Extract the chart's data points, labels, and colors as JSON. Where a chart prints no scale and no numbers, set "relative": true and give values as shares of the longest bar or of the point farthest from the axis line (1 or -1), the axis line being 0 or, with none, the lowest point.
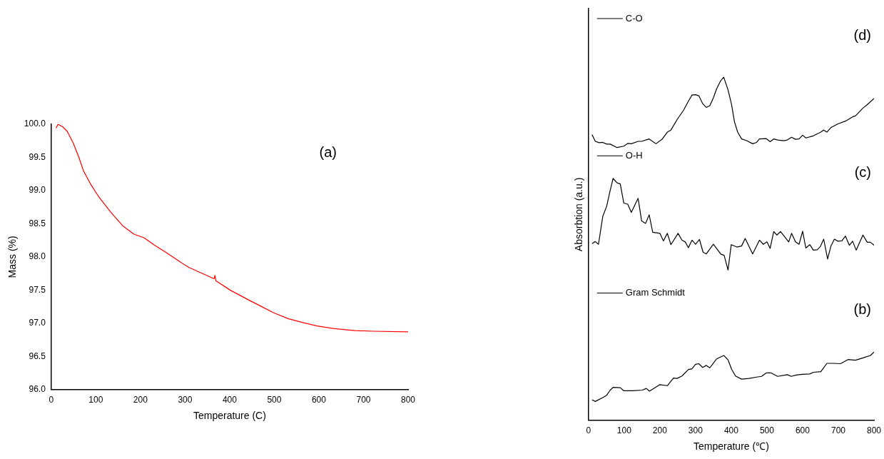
{
  "chart_data": [
    {
      "type": "line",
      "xlabel": "Temperature (C)",
      "ylabel": "Mass (%)",
      "color": "#ff0000",
      "annotations": [
        "(a)"
      ],
      "x": [
        11,
        15,
        26,
        36,
        49,
        62,
        72,
        88,
        107,
        134,
        160,
        186,
        208,
        231,
        257,
        290,
        309,
        342,
        365,
        367,
        369,
        401,
        440,
        472,
        498,
        531,
        564,
        596,
        635,
        681,
        720,
        800
      ],
      "values": [
        99.94,
        100.0,
        99.96,
        99.89,
        99.72,
        99.5,
        99.3,
        99.1,
        98.9,
        98.67,
        98.47,
        98.34,
        98.29,
        98.18,
        98.07,
        97.92,
        97.84,
        97.74,
        97.67,
        97.72,
        97.64,
        97.5,
        97.36,
        97.25,
        97.16,
        97.07,
        97.01,
        96.96,
        96.92,
        96.89,
        96.88,
        96.87
      ],
      "xlim": [
        0,
        800
      ],
      "xticks": [
        0,
        100,
        200,
        300,
        400,
        500,
        600,
        700,
        800
      ],
      "ylim": [
        96,
        100
      ],
      "yticks": [
        {
          "value": 96,
          "label": "96.0"
        },
        {
          "value": 96.5,
          "label": "96.5"
        },
        {
          "value": 97,
          "label": "97.0"
        },
        {
          "value": 97.5,
          "label": "97.5"
        },
        {
          "value": 98,
          "label": "98.0"
        },
        {
          "value": 98.5,
          "label": "98.5"
        },
        {
          "value": 99,
          "label": "99.0"
        },
        {
          "value": 99.5,
          "label": "99.5"
        },
        {
          "value": 100,
          "label": "100.0"
        }
      ]
    },
    {
      "type": "line",
      "xlabel": "Temperature (℃)",
      "ylabel": "Absorbtion (a.u.)",
      "relative": true,
      "tick_labels": "x",
      "legend": "top left",
      "annotations": [
        "(d)",
        "(c)",
        "(b)"
      ],
      "xlim": [
        0,
        800
      ],
      "xticks": [
        0,
        100,
        200,
        300,
        400,
        500,
        600,
        700,
        800
      ],
      "series": [
        {
          "name": "C-O",
          "color": "#000000",
          "x": [
            10,
            19,
            30,
            40,
            51,
            61,
            80,
            99,
            110,
            120,
            139,
            149,
            170,
            189,
            207,
            221,
            231,
            248,
            266,
            280,
            290,
            300,
            309,
            320,
            330,
            340,
            350,
            359,
            370,
            379,
            391,
            401,
            409,
            418,
            429,
            443,
            460,
            471,
            479,
            498,
            509,
            519,
            530,
            547,
            557,
            569,
            580,
            590,
            600,
            609,
            630,
            651,
            659,
            668,
            679,
            699,
            720,
            741,
            748,
            769,
            779,
            800
          ],
          "values": [
            0.833,
            0.813,
            0.809,
            0.81,
            0.805,
            0.805,
            0.795,
            0.799,
            0.807,
            0.806,
            0.813,
            0.813,
            0.82,
            0.806,
            0.82,
            0.84,
            0.846,
            0.876,
            0.903,
            0.93,
            0.948,
            0.949,
            0.946,
            0.923,
            0.912,
            0.917,
            0.94,
            0.966,
            0.989,
            1.0,
            0.963,
            0.92,
            0.87,
            0.84,
            0.82,
            0.815,
            0.806,
            0.81,
            0.82,
            0.821,
            0.812,
            0.82,
            0.817,
            0.815,
            0.817,
            0.825,
            0.819,
            0.82,
            0.831,
            0.823,
            0.829,
            0.84,
            0.846,
            0.84,
            0.853,
            0.864,
            0.872,
            0.885,
            0.887,
            0.91,
            0.918,
            0.938
          ]
        },
        {
          "name": "O-H",
          "color": "#000000",
          "x": [
            10,
            19,
            28,
            40,
            51,
            61,
            69,
            80,
            89,
            99,
            110,
            120,
            139,
            149,
            160,
            170,
            180,
            200,
            210,
            221,
            231,
            251,
            262,
            271,
            280,
            290,
            300,
            311,
            321,
            330,
            350,
            371,
            380,
            391,
            400,
            416,
            429,
            439,
            460,
            479,
            490,
            500,
            509,
            519,
            528,
            538,
            561,
            569,
            580,
            590,
            600,
            609,
            620,
            630,
            641,
            650,
            659,
            670,
            679,
            689,
            699,
            710,
            720,
            731,
            740,
            750,
            769,
            781,
            790,
            800
          ],
          "values": [
            0.515,
            0.521,
            0.513,
            0.594,
            0.624,
            0.671,
            0.705,
            0.692,
            0.689,
            0.633,
            0.63,
            0.606,
            0.647,
            0.581,
            0.574,
            0.599,
            0.548,
            0.545,
            0.523,
            0.545,
            0.512,
            0.545,
            0.525,
            0.52,
            0.503,
            0.525,
            0.513,
            0.527,
            0.49,
            0.485,
            0.513,
            0.484,
            0.481,
            0.438,
            0.512,
            0.505,
            0.508,
            0.53,
            0.485,
            0.525,
            0.513,
            0.52,
            0.501,
            0.55,
            0.54,
            0.55,
            0.52,
            0.545,
            0.52,
            0.513,
            0.551,
            0.502,
            0.512,
            0.496,
            0.497,
            0.507,
            0.528,
            0.47,
            0.507,
            0.528,
            0.522,
            0.523,
            0.537,
            0.51,
            0.522,
            0.496,
            0.54,
            0.519,
            0.519,
            0.51
          ]
        },
        {
          "name": "Gram Schmidt",
          "color": "#000000",
          "x": [
            10,
            19,
            40,
            51,
            61,
            69,
            89,
            99,
            124,
            151,
            162,
            171,
            200,
            221,
            238,
            248,
            262,
            280,
            290,
            300,
            309,
            320,
            330,
            340,
            359,
            379,
            391,
            401,
            412,
            429,
            450,
            471,
            485,
            498,
            512,
            530,
            557,
            568,
            582,
            599,
            620,
            630,
            651,
            668,
            686,
            706,
            727,
            748,
            769,
            790,
            800
          ],
          "values": [
            0.06,
            0.055,
            0.066,
            0.073,
            0.088,
            0.096,
            0.095,
            0.086,
            0.086,
            0.088,
            0.093,
            0.085,
            0.104,
            0.101,
            0.123,
            0.122,
            0.129,
            0.148,
            0.15,
            0.163,
            0.165,
            0.154,
            0.16,
            0.153,
            0.179,
            0.189,
            0.176,
            0.149,
            0.129,
            0.12,
            0.122,
            0.126,
            0.128,
            0.138,
            0.138,
            0.128,
            0.133,
            0.128,
            0.132,
            0.134,
            0.135,
            0.14,
            0.142,
            0.166,
            0.166,
            0.165,
            0.177,
            0.175,
            0.182,
            0.189,
            0.199
          ]
        }
      ]
    }
  ]
}
